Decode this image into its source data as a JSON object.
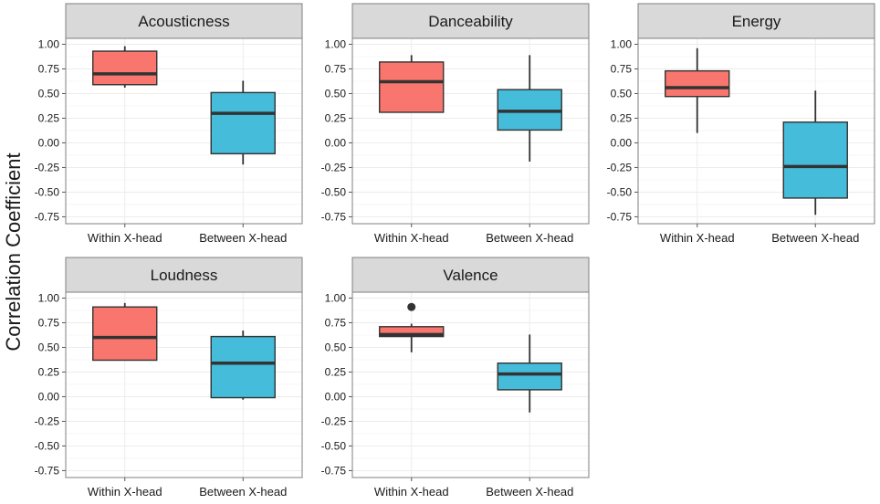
{
  "chart_data": {
    "type": "boxplot",
    "ylabel": "Correlation Coefficient",
    "xlabel": "",
    "categories": [
      "Within X-head",
      "Between X-head"
    ],
    "ylim": [
      -0.82,
      1.06
    ],
    "yticks": [
      -0.75,
      -0.5,
      -0.25,
      0,
      0.25,
      0.5,
      0.75,
      1
    ],
    "ytick_labels": [
      "-0.75",
      "-0.50",
      "-0.25",
      "0.00",
      "0.25",
      "0.50",
      "0.75",
      "1.00"
    ],
    "colors": {
      "Within X-head": "#F8766D",
      "Between X-head": "#44BCDA"
    },
    "panel_colors": {
      "strip": "#d9d9d9",
      "grid": "#ececec",
      "border": "#7f7f7f",
      "median": "#333333"
    },
    "facets": [
      {
        "title": "Acousticness",
        "boxes": [
          {
            "category": "Within X-head",
            "min": 0.56,
            "q1": 0.59,
            "median": 0.7,
            "q3": 0.93,
            "max": 0.98,
            "outliers": []
          },
          {
            "category": "Between X-head",
            "min": -0.22,
            "q1": -0.11,
            "median": 0.3,
            "q3": 0.51,
            "max": 0.63,
            "outliers": []
          }
        ]
      },
      {
        "title": "Danceability",
        "boxes": [
          {
            "category": "Within X-head",
            "min": 0.31,
            "q1": 0.31,
            "median": 0.62,
            "q3": 0.82,
            "max": 0.89,
            "outliers": []
          },
          {
            "category": "Between X-head",
            "min": -0.19,
            "q1": 0.13,
            "median": 0.32,
            "q3": 0.54,
            "max": 0.89,
            "outliers": []
          }
        ]
      },
      {
        "title": "Energy",
        "boxes": [
          {
            "category": "Within X-head",
            "min": 0.1,
            "q1": 0.47,
            "median": 0.56,
            "q3": 0.73,
            "max": 0.96,
            "outliers": []
          },
          {
            "category": "Between X-head",
            "min": -0.73,
            "q1": -0.56,
            "median": -0.24,
            "q3": 0.21,
            "max": 0.53,
            "outliers": []
          }
        ]
      },
      {
        "title": "Loudness",
        "boxes": [
          {
            "category": "Within X-head",
            "min": 0.37,
            "q1": 0.37,
            "median": 0.6,
            "q3": 0.91,
            "max": 0.95,
            "outliers": []
          },
          {
            "category": "Between X-head",
            "min": -0.03,
            "q1": -0.01,
            "median": 0.34,
            "q3": 0.61,
            "max": 0.67,
            "outliers": []
          }
        ]
      },
      {
        "title": "Valence",
        "boxes": [
          {
            "category": "Within X-head",
            "min": 0.45,
            "q1": 0.61,
            "median": 0.63,
            "q3": 0.71,
            "max": 0.74,
            "outliers": [
              0.91
            ]
          },
          {
            "category": "Between X-head",
            "min": -0.16,
            "q1": 0.07,
            "median": 0.23,
            "q3": 0.34,
            "max": 0.63,
            "outliers": []
          }
        ]
      }
    ]
  }
}
